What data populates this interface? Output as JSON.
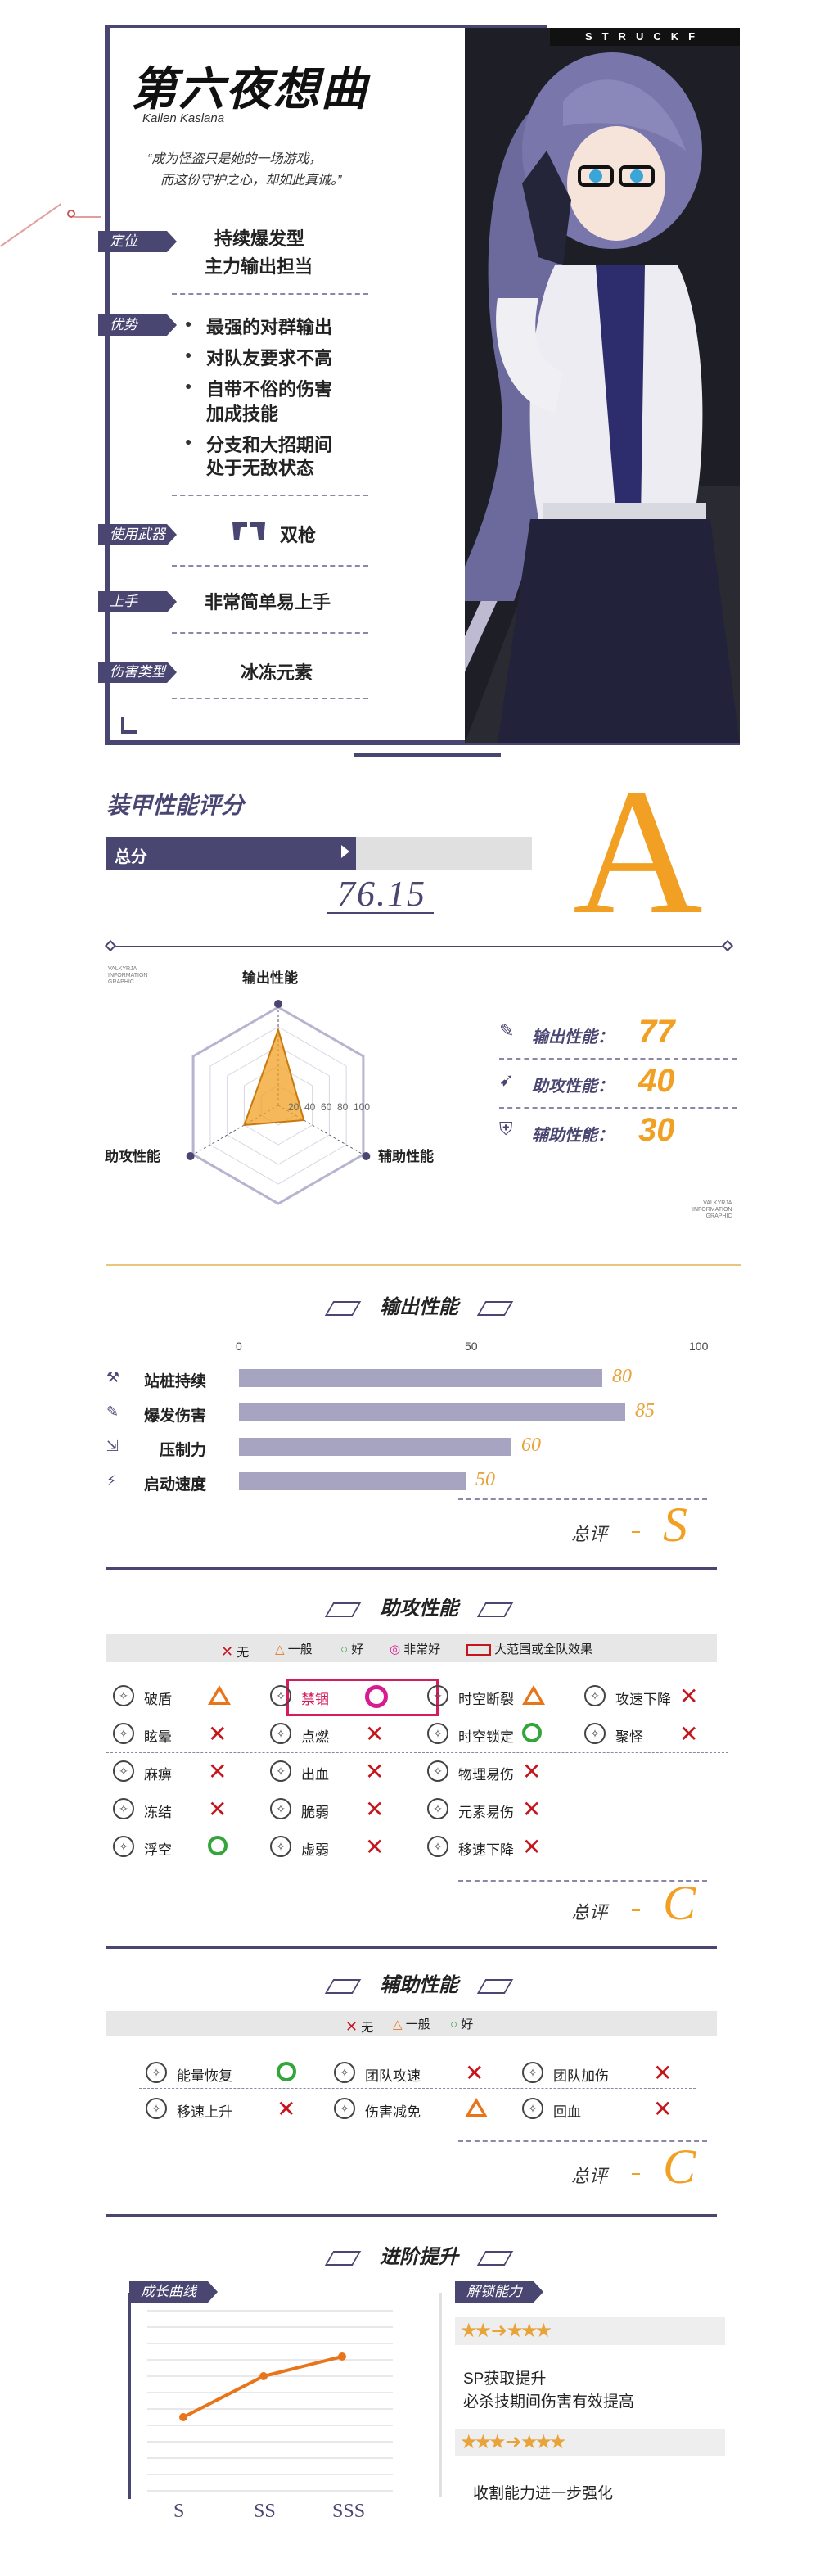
{
  "header": {
    "brand": "STRUCKF",
    "title": "第六夜想曲",
    "subtitle": "Kallen Kaslana",
    "quote_line1": "“成为怪盗只是她的一场游戏，",
    "quote_line2": "而这份守护之心，却如此真诚。”"
  },
  "profile": {
    "role_tag": "定位",
    "role_line1": "持续爆发型",
    "role_line2": "主力输出担当",
    "adv_tag": "优势",
    "adv_1": "最强的对群输出",
    "adv_2": "对队友要求不高",
    "adv_3a": "自带不俗的伤害",
    "adv_3b": "加成技能",
    "adv_4a": "分支和大招期间",
    "adv_4b": "处于无敌状态",
    "weapon_tag": "使用武器",
    "weapon": "双枪",
    "ease_tag": "上手",
    "ease": "非常简单易上手",
    "dmg_tag": "伤害类型",
    "dmg": "冰冻元素"
  },
  "rating": {
    "title": "装甲性能评分",
    "total_label": "总分",
    "total_value": "76.15",
    "total_fraction": 0.7615,
    "grade": "A"
  },
  "radar": {
    "corner_text_1": "VALKYRJA",
    "corner_text_2": "INFORMATION",
    "corner_text_3": "GRAPHIC",
    "axis_top": "输出性能",
    "axis_left": "助攻性能",
    "axis_right": "辅助性能",
    "ticks": [
      "20",
      "40",
      "60",
      "80",
      "100"
    ],
    "items": [
      {
        "label": "输出性能：",
        "value": "77"
      },
      {
        "label": "助攻性能：",
        "value": "40"
      },
      {
        "label": "辅助性能：",
        "value": "30"
      }
    ]
  },
  "output": {
    "title": "输出性能",
    "axis": [
      "0",
      "50",
      "100"
    ],
    "bars": [
      {
        "label": "站桩持续",
        "value": 80,
        "text": "80"
      },
      {
        "label": "爆发伤害",
        "value": 85,
        "text": "85"
      },
      {
        "label": "压制力",
        "value": 60,
        "text": "60"
      },
      {
        "label": "启动速度",
        "value": 50,
        "text": "50"
      }
    ],
    "summary_label": "总评",
    "grade": "S"
  },
  "assist": {
    "title": "助攻性能",
    "legend": {
      "none": "无",
      "normal": "一般",
      "good": "好",
      "great": "非常好",
      "aoe": "大范围或全队效果"
    },
    "rows": [
      [
        {
          "l": "破盾",
          "m": "t"
        },
        {
          "l": "禁锢",
          "m": "p",
          "hl": true
        },
        {
          "l": "时空断裂",
          "m": "t"
        },
        {
          "l": "攻速下降",
          "m": "x"
        }
      ],
      [
        {
          "l": "眩晕",
          "m": "x"
        },
        {
          "l": "点燃",
          "m": "x"
        },
        {
          "l": "时空锁定",
          "m": "o"
        },
        {
          "l": "聚怪",
          "m": "x"
        }
      ],
      [
        {
          "l": "麻痹",
          "m": "x"
        },
        {
          "l": "出血",
          "m": "x"
        },
        {
          "l": "物理易伤",
          "m": "x"
        }
      ],
      [
        {
          "l": "冻结",
          "m": "x"
        },
        {
          "l": "脆弱",
          "m": "x"
        },
        {
          "l": "元素易伤",
          "m": "x"
        }
      ],
      [
        {
          "l": "浮空",
          "m": "o"
        },
        {
          "l": "虚弱",
          "m": "x"
        },
        {
          "l": "移速下降",
          "m": "x"
        }
      ]
    ],
    "summary_label": "总评",
    "grade": "C"
  },
  "support": {
    "title": "辅助性能",
    "legend": {
      "none": "无",
      "normal": "一般",
      "good": "好"
    },
    "rows": [
      [
        {
          "l": "能量恢复",
          "m": "o"
        },
        {
          "l": "团队攻速",
          "m": "x"
        },
        {
          "l": "团队加伤",
          "m": "x"
        }
      ],
      [
        {
          "l": "移速上升",
          "m": "x"
        },
        {
          "l": "伤害减免",
          "m": "t"
        },
        {
          "l": "回血",
          "m": "x"
        }
      ]
    ],
    "summary_label": "总评",
    "grade": "C"
  },
  "advance": {
    "title": "进阶提升",
    "curve_tag": "成长曲线",
    "unlock_tag": "解锁能力",
    "curve_x": [
      "S",
      "SS",
      "SSS"
    ],
    "curve_y": [
      0.45,
      0.7,
      0.82
    ],
    "unlock_1_line1": "SP获取提升",
    "unlock_1_line2": "必杀技期间伤害有效提高",
    "unlock_2": "收割能力进一步强化"
  },
  "colors": {
    "accent": "#4a4672",
    "gold": "#f2a024",
    "bad": "#c4161c",
    "good": "#34a53a",
    "mid": "#e8751a",
    "great": "#d61c8f"
  }
}
